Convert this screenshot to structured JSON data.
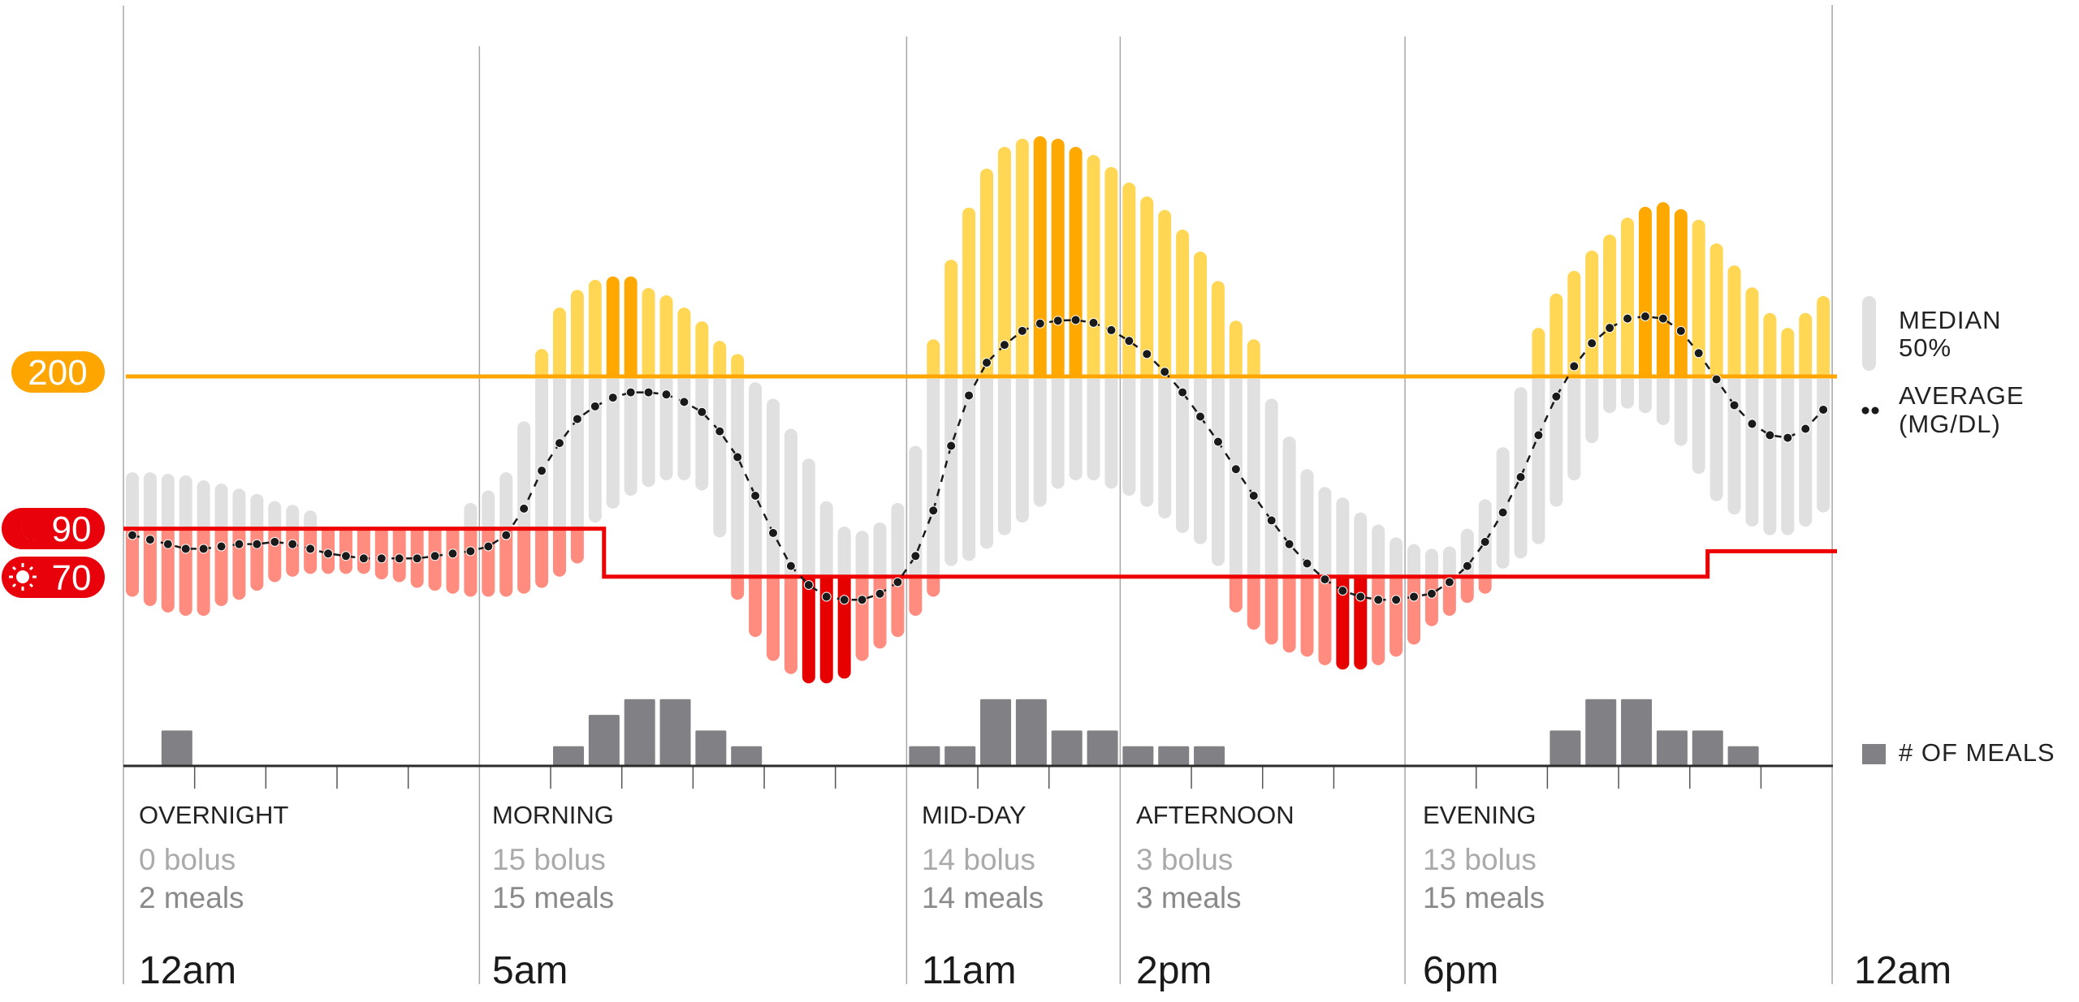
{
  "colors": {
    "high_bar": "#FFD755",
    "high_bar_peak": "#FFA800",
    "range_bar": "#E0E0E0",
    "low_bar": "#FF8C7E",
    "low_bar_trough": "#E60000",
    "high_threshold": "#FFA500",
    "low_threshold": "#EE0000",
    "average": "#1a1a1a",
    "meals": "#818085"
  },
  "badges": {
    "high": {
      "label": "200",
      "icon": "none"
    },
    "low_night": {
      "label": "90",
      "icon": "moon-icon"
    },
    "low_day": {
      "label": "70",
      "icon": "sun-icon"
    }
  },
  "legend": {
    "median_line1": "MEDIAN",
    "median_line2": "50%",
    "average_line1": "AVERAGE",
    "average_line2": "(MG/DL)",
    "meals": "# OF MEALS"
  },
  "sections": [
    {
      "title": "OVERNIGHT",
      "bolus": "0 bolus",
      "meals": "2 meals",
      "time": "12am"
    },
    {
      "title": "MORNING",
      "bolus": "15 bolus",
      "meals": "15 meals",
      "time": "5am"
    },
    {
      "title": "MID-DAY",
      "bolus": "14 bolus",
      "meals": "14 meals",
      "time": "11am"
    },
    {
      "title": "AFTERNOON",
      "bolus": "3 bolus",
      "meals": "3 meals",
      "time": "2pm"
    },
    {
      "title": "EVENING",
      "bolus": "13 bolus",
      "meals": "15 meals",
      "time": "6pm"
    }
  ],
  "end_time": "12am",
  "chart_data": {
    "type": "bar",
    "x_range_hours": [
      0,
      24
    ],
    "bin_minutes": 15,
    "y_scale": "log",
    "high_threshold": 200,
    "low_threshold_schedule": [
      {
        "start_hour": 0,
        "end_hour": 6.75,
        "value": 90
      },
      {
        "start_hour": 6.75,
        "end_hour": 22.25,
        "value": 70
      },
      {
        "start_hour": 22.25,
        "end_hour": 24,
        "value": 80
      }
    ],
    "section_boundaries_hours": [
      0,
      5,
      11,
      14,
      18,
      24
    ],
    "median_50": {
      "name": "MEDIAN 50%",
      "high": [
        121,
        121,
        120,
        119,
        116,
        114,
        111,
        108,
        104,
        102,
        99,
        90,
        90,
        90,
        90,
        90,
        90,
        90,
        90,
        103,
        110,
        121,
        158,
        231,
        287,
        315,
        332,
        338,
        338,
        318,
        306,
        287,
        267,
        241,
        225,
        194,
        178,
        152,
        130,
        104,
        91,
        89,
        93,
        103,
        139,
        243,
        369,
        485,
        595,
        667,
        696,
        705,
        696,
        667,
        639,
        600,
        553,
        514,
        479,
        432,
        385,
        330,
        268,
        243,
        178,
        146,
        123,
        112,
        106,
        98,
        92,
        86,
        83,
        81,
        82,
        90,
        105,
        138,
        189,
        258,
        309,
        348,
        387,
        421,
        460,
        487,
        499,
        481,
        455,
        402,
        358,
        319,
        279,
        258,
        279,
        305
      ],
      "low": [
        63,
        60,
        58,
        57,
        57,
        60,
        62,
        65,
        68,
        70,
        71,
        71,
        71,
        71,
        69,
        68,
        66,
        65,
        64,
        63,
        63,
        63,
        64,
        66,
        70,
        75,
        93,
        100,
        107,
        112,
        116,
        116,
        110,
        86,
        62,
        51,
        45,
        42,
        40,
        40,
        41,
        45,
        48,
        51,
        57,
        63,
        74,
        76,
        81,
        87,
        93,
        101,
        111,
        116,
        116,
        111,
        107,
        101,
        95,
        88,
        83,
        74,
        58,
        53,
        49,
        47,
        46,
        44,
        43,
        43,
        44,
        46,
        49,
        54,
        57,
        61,
        64,
        73,
        77,
        83,
        101,
        116,
        141,
        165,
        169,
        165,
        155,
        139,
        120,
        104,
        97,
        91,
        87,
        87,
        91,
        98
      ],
      "peak_bins": [
        27,
        28,
        51,
        52,
        53,
        85,
        86,
        87
      ],
      "trough_bins": [
        38,
        39,
        40,
        68,
        69
      ]
    },
    "average": {
      "name": "AVERAGE (MG/DL)",
      "values": [
        87,
        85,
        83,
        81,
        81,
        82,
        83,
        83,
        84,
        83,
        81,
        79,
        78,
        77,
        77,
        77,
        77,
        78,
        79,
        80,
        82,
        87,
        100,
        122,
        141,
        160,
        171,
        179,
        184,
        184,
        182,
        175,
        166,
        150,
        131,
        107,
        88,
        74,
        67,
        63,
        62,
        62,
        64,
        68,
        78,
        99,
        139,
        181,
        215,
        236,
        254,
        264,
        268,
        269,
        265,
        255,
        241,
        225,
        205,
        184,
        162,
        142,
        123,
        107,
        94,
        83,
        75,
        69,
        65,
        63,
        62,
        62,
        63,
        64,
        68,
        74,
        84,
        98,
        118,
        147,
        180,
        211,
        238,
        258,
        271,
        274,
        271,
        254,
        226,
        197,
        172,
        156,
        147,
        145,
        152,
        168
      ]
    },
    "meals": {
      "name": "# OF MEALS",
      "bin_minutes": 30,
      "values": [
        0,
        2,
        0,
        0,
        0,
        0,
        0,
        0,
        0,
        0,
        0,
        0,
        1,
        3,
        4,
        4,
        2,
        1,
        0,
        0,
        0,
        0,
        1,
        1,
        4,
        4,
        2,
        2,
        1,
        1,
        1,
        0,
        0,
        0,
        0,
        0,
        0,
        0,
        0,
        0,
        2,
        4,
        4,
        2,
        2,
        1,
        0,
        0
      ]
    }
  }
}
